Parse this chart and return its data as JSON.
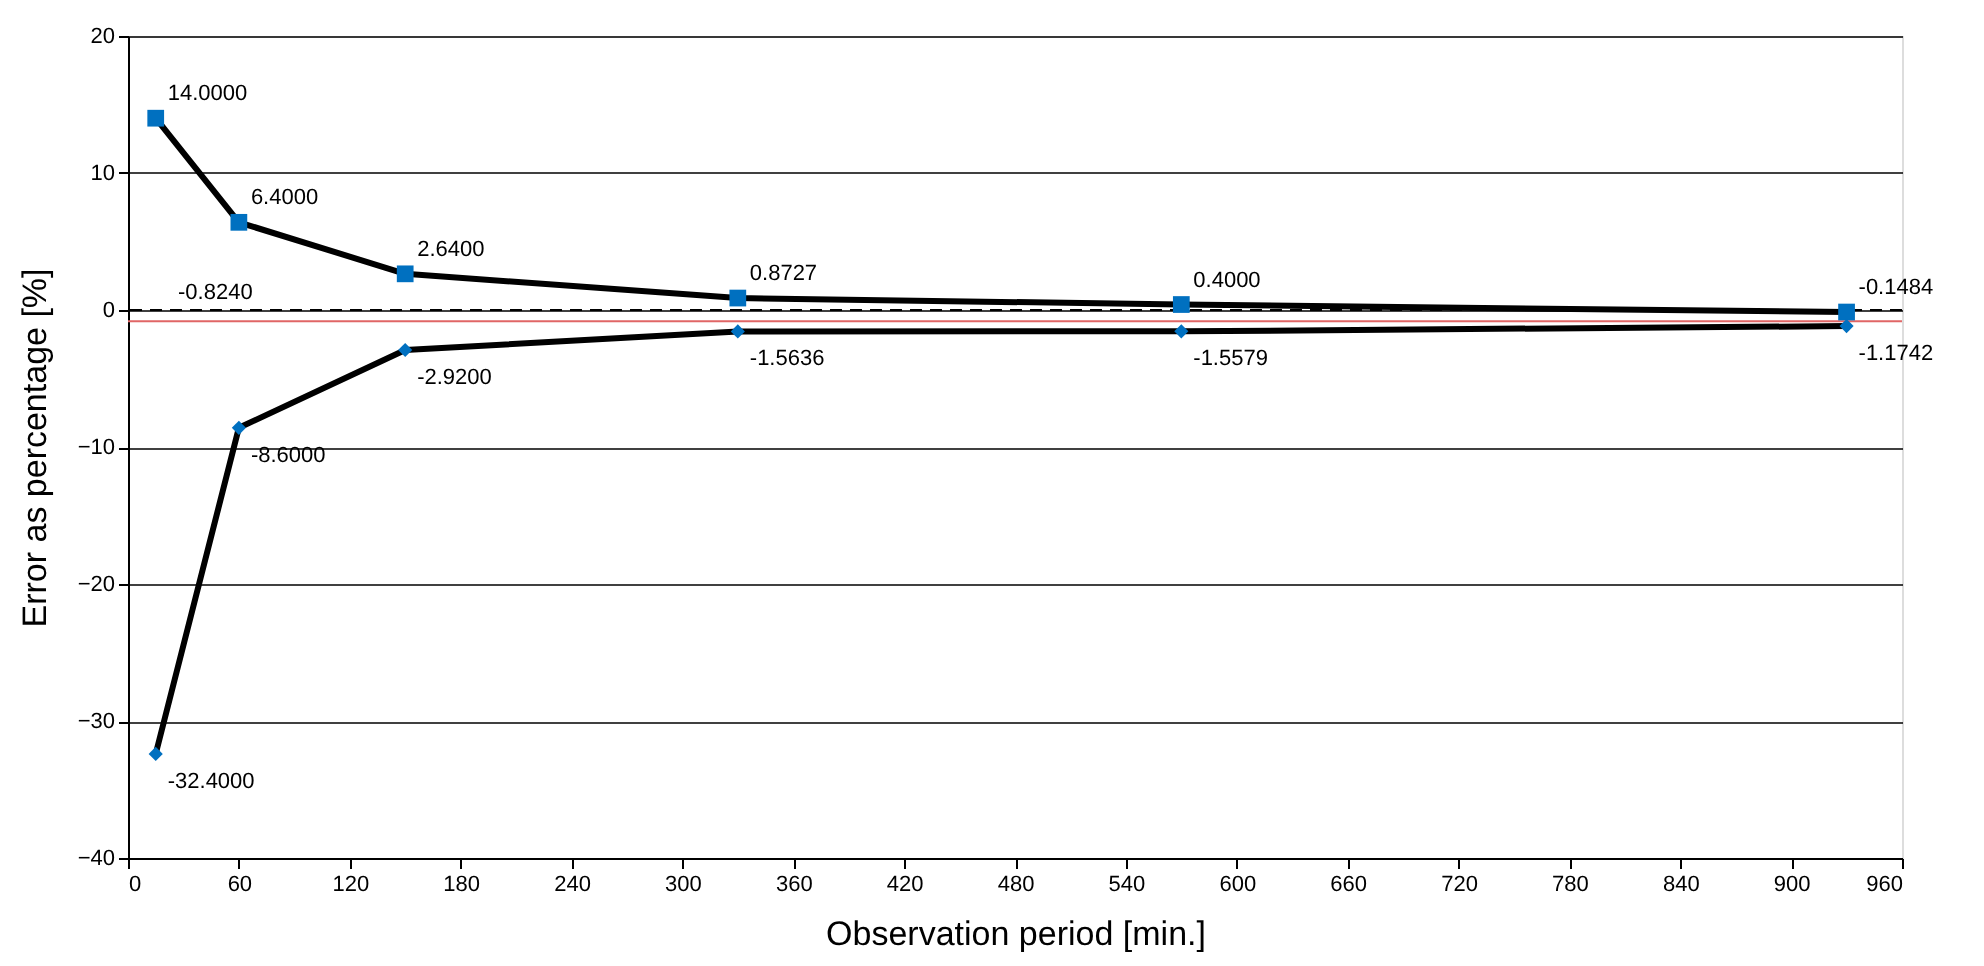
{
  "chart_data": {
    "type": "line",
    "xlabel": "Observation period [min.]",
    "ylabel": "Error as percentage [%]",
    "xlim": [
      0,
      960
    ],
    "xticks": [
      0,
      60,
      120,
      180,
      240,
      300,
      360,
      420,
      480,
      540,
      600,
      660,
      720,
      780,
      840,
      900,
      960
    ],
    "ylim": [
      -40,
      20
    ],
    "yticks": [
      -40,
      -30,
      -20,
      -10,
      0,
      10,
      20
    ],
    "grid": "y",
    "legend": false,
    "line_style": "solid",
    "ref_lines": [
      {
        "axis": "y",
        "value": 0,
        "color": "#000000",
        "line_style": "dashed"
      },
      {
        "axis": "y",
        "value": -0.824,
        "label": "-0.8240",
        "color": "#e06666",
        "line_style": "solid"
      }
    ],
    "series": [
      {
        "color": "#0070c0",
        "marker": "square",
        "x": [
          15,
          60,
          150,
          330,
          570,
          930
        ],
        "values": [
          14.0,
          6.4,
          2.64,
          0.8727,
          0.4,
          -0.1484
        ],
        "value_labels": [
          "14.0000",
          "6.4000",
          "2.6400",
          "0.8727",
          "0.4000",
          "-0.1484"
        ]
      },
      {
        "color": "#0070c0",
        "marker": "diamond",
        "x": [
          15,
          60,
          150,
          330,
          570,
          930
        ],
        "values": [
          -32.4,
          -8.6,
          -2.92,
          -1.5636,
          -1.5579,
          -1.1742
        ],
        "value_labels": [
          "-32.4000",
          "-8.6000",
          "-2.9200",
          "-1.5636",
          "-1.5579",
          "-1.1742"
        ]
      }
    ]
  }
}
